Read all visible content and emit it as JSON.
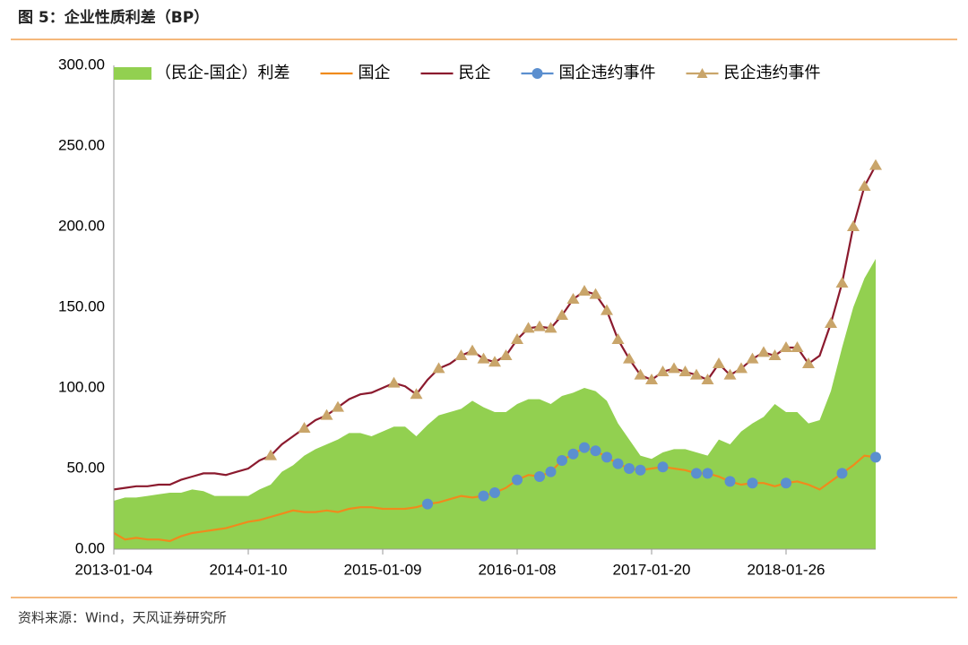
{
  "header": {
    "title": "图 5：企业性质利差（BP）"
  },
  "chart_data": {
    "type": "line",
    "categories": [
      "2013-01-04",
      null,
      null,
      null,
      null,
      null,
      null,
      null,
      null,
      null,
      null,
      null,
      "2014-01-10",
      null,
      null,
      null,
      null,
      null,
      null,
      null,
      null,
      null,
      null,
      null,
      "2015-01-09",
      null,
      null,
      null,
      null,
      null,
      null,
      null,
      null,
      null,
      null,
      null,
      "2016-01-08",
      null,
      null,
      null,
      null,
      null,
      null,
      null,
      null,
      null,
      null,
      null,
      "2017-01-20",
      null,
      null,
      null,
      null,
      null,
      null,
      null,
      null,
      null,
      null,
      null,
      "2018-01-26",
      null,
      null,
      null,
      null,
      null,
      null,
      null,
      null
    ],
    "ylim": [
      0,
      300
    ],
    "yticks": [
      {
        "value": 0,
        "label": "0.00"
      },
      {
        "value": 50,
        "label": "50.00"
      },
      {
        "value": 100,
        "label": "100.00"
      },
      {
        "value": 150,
        "label": "150.00"
      },
      {
        "value": 200,
        "label": "200.00"
      },
      {
        "value": 250,
        "label": "250.00"
      },
      {
        "value": 300,
        "label": "300.00"
      }
    ],
    "grid": false,
    "legend": "top",
    "series": [
      {
        "name": "（民企-国企）利差",
        "type": "area",
        "color": "#92d050",
        "values": [
          30,
          32,
          32,
          33,
          34,
          35,
          35,
          37,
          36,
          33,
          33,
          33,
          33,
          37,
          40,
          48,
          52,
          58,
          62,
          65,
          68,
          72,
          72,
          70,
          73,
          76,
          76,
          70,
          77,
          83,
          85,
          87,
          92,
          88,
          85,
          85,
          90,
          93,
          93,
          90,
          95,
          97,
          100,
          98,
          92,
          78,
          68,
          58,
          56,
          60,
          62,
          62,
          60,
          58,
          68,
          65,
          73,
          78,
          82,
          90,
          85,
          85,
          78,
          80,
          98,
          125,
          150,
          168,
          180
        ]
      },
      {
        "name": "国企",
        "type": "line",
        "color": "#f08a1c",
        "values": [
          10,
          6,
          7,
          6,
          6,
          5,
          8,
          10,
          11,
          12,
          13,
          15,
          17,
          18,
          20,
          22,
          24,
          23,
          23,
          24,
          23,
          25,
          26,
          26,
          25,
          25,
          25,
          26,
          28,
          29,
          31,
          33,
          32,
          33,
          35,
          38,
          43,
          46,
          45,
          48,
          55,
          59,
          63,
          61,
          57,
          53,
          50,
          49,
          50,
          51,
          50,
          49,
          47,
          47,
          45,
          42,
          40,
          41,
          41,
          39,
          41,
          42,
          40,
          37,
          42,
          47,
          52,
          58,
          57
        ]
      },
      {
        "name": "民企",
        "type": "line",
        "color": "#8b1a2e",
        "values": [
          37,
          38,
          39,
          39,
          40,
          40,
          43,
          45,
          47,
          47,
          46,
          48,
          50,
          55,
          58,
          65,
          70,
          75,
          80,
          83,
          88,
          93,
          96,
          97,
          100,
          103,
          101,
          96,
          105,
          112,
          115,
          120,
          123,
          118,
          116,
          120,
          130,
          137,
          138,
          137,
          145,
          155,
          160,
          158,
          148,
          130,
          118,
          108,
          105,
          110,
          112,
          110,
          108,
          105,
          115,
          108,
          112,
          118,
          122,
          120,
          125,
          125,
          115,
          120,
          140,
          165,
          200,
          225,
          238
        ]
      },
      {
        "name": "国企违约事件",
        "type": "marker",
        "marker": "circle",
        "color": "#5b8fcf",
        "values": [
          null,
          null,
          null,
          null,
          null,
          null,
          null,
          null,
          null,
          null,
          null,
          null,
          null,
          null,
          null,
          null,
          null,
          null,
          null,
          null,
          null,
          null,
          null,
          null,
          null,
          null,
          null,
          null,
          28,
          null,
          null,
          null,
          null,
          33,
          35,
          null,
          43,
          null,
          45,
          48,
          55,
          59,
          63,
          61,
          57,
          53,
          50,
          49,
          null,
          51,
          null,
          null,
          47,
          47,
          null,
          42,
          null,
          41,
          null,
          null,
          41,
          null,
          null,
          null,
          null,
          47,
          null,
          null,
          57
        ]
      },
      {
        "name": "民企违约事件",
        "type": "marker",
        "marker": "triangle",
        "color": "#c9a56a",
        "values": [
          null,
          null,
          null,
          null,
          null,
          null,
          null,
          null,
          null,
          null,
          null,
          null,
          null,
          null,
          58,
          null,
          null,
          75,
          null,
          83,
          88,
          null,
          null,
          null,
          null,
          103,
          null,
          96,
          null,
          112,
          null,
          120,
          123,
          118,
          116,
          120,
          130,
          137,
          138,
          137,
          145,
          155,
          160,
          158,
          148,
          130,
          118,
          108,
          105,
          110,
          112,
          110,
          108,
          105,
          115,
          108,
          112,
          118,
          122,
          120,
          125,
          125,
          115,
          null,
          140,
          165,
          200,
          225,
          238
        ]
      }
    ]
  },
  "footer": {
    "source": "资料来源：Wind，天风证券研究所"
  }
}
